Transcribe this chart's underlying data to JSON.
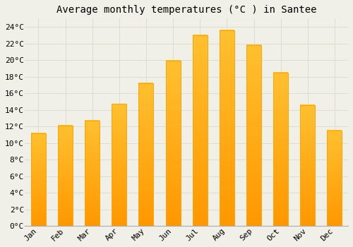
{
  "title": "Average monthly temperatures (°C ) in Santee",
  "months": [
    "Jan",
    "Feb",
    "Mar",
    "Apr",
    "May",
    "Jun",
    "Jul",
    "Aug",
    "Sep",
    "Oct",
    "Nov",
    "Dec"
  ],
  "values": [
    11.2,
    12.1,
    12.7,
    14.7,
    17.2,
    19.9,
    23.0,
    23.6,
    21.8,
    18.5,
    14.6,
    11.5
  ],
  "bar_color_top": "#FFC030",
  "bar_color_bottom": "#FF9800",
  "bar_edge_color": "#FFA500",
  "background_color": "#F0F0E8",
  "grid_color": "#DDDDCC",
  "ylim": [
    0,
    25
  ],
  "yticks": [
    0,
    2,
    4,
    6,
    8,
    10,
    12,
    14,
    16,
    18,
    20,
    22,
    24
  ],
  "title_fontsize": 10,
  "tick_fontsize": 8,
  "font_family": "monospace",
  "bar_width": 0.55
}
